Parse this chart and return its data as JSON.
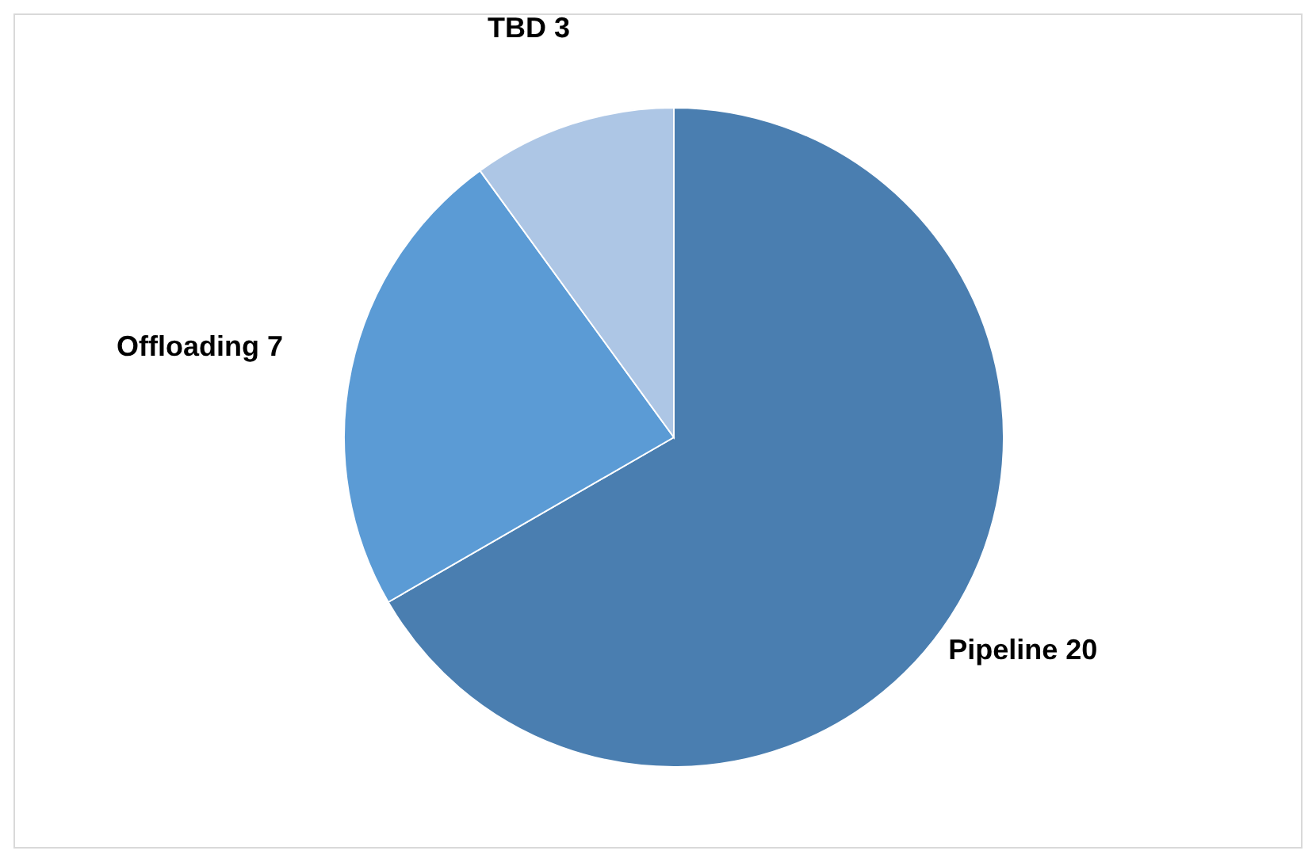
{
  "chart_data": {
    "type": "pie",
    "categories": [
      "Pipeline",
      "Offloading",
      "TBD"
    ],
    "values": [
      20,
      7,
      3
    ],
    "colors": [
      "#4a7eb0",
      "#5b9bd5",
      "#adc6e5"
    ],
    "data_labels": true
  }
}
